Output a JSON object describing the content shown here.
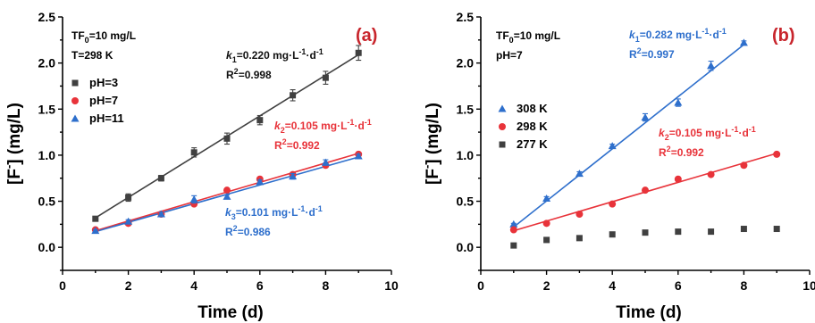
{
  "chart_data": [
    {
      "type": "scatter",
      "panel_label": "(a)",
      "xlabel": "Time (d)",
      "ylabel": "[F⁻] (mg/L)",
      "xlim": [
        0,
        10
      ],
      "ylim": [
        -0.25,
        2.5
      ],
      "xticks": [
        0,
        2,
        4,
        6,
        8,
        10
      ],
      "yticks": [
        0.0,
        0.5,
        1.0,
        1.5,
        2.0,
        2.5
      ],
      "xtick_labels": [
        "0",
        "2",
        "4",
        "6",
        "8",
        "10"
      ],
      "ytick_labels": [
        "0.0",
        "0.5",
        "1.0",
        "1.5",
        "2.0",
        "2.5"
      ],
      "conditions": [
        "TF0=10 mg/L",
        "T=298 K"
      ],
      "legend_position": "left",
      "series": [
        {
          "name": "pH=3",
          "color": "#404040",
          "marker": "square",
          "x": [
            1,
            2,
            3,
            4,
            5,
            6,
            7,
            8,
            9
          ],
          "y": [
            0.31,
            0.54,
            0.75,
            1.03,
            1.18,
            1.38,
            1.65,
            1.84,
            2.11
          ],
          "err": [
            0.02,
            0.04,
            0.03,
            0.05,
            0.06,
            0.05,
            0.06,
            0.07,
            0.08
          ],
          "fit": {
            "x": [
              1,
              9
            ],
            "y": [
              0.32,
              2.09
            ]
          },
          "annotation": {
            "k": "k1=0.220 mg·L-1·d-1",
            "r2": "R2=0.998"
          }
        },
        {
          "name": "pH=7",
          "color": "#e8333a",
          "marker": "circle",
          "x": [
            1,
            2,
            3,
            4,
            5,
            6,
            7,
            8,
            9
          ],
          "y": [
            0.19,
            0.26,
            0.36,
            0.47,
            0.62,
            0.74,
            0.79,
            0.89,
            1.01
          ],
          "err": [
            0,
            0,
            0,
            0,
            0,
            0,
            0,
            0,
            0
          ],
          "fit": {
            "x": [
              1,
              9
            ],
            "y": [
              0.18,
              1.02
            ]
          },
          "annotation": {
            "k": "k2=0.105 mg·L-1·d-1",
            "r2": "R2=0.992"
          }
        },
        {
          "name": "pH=11",
          "color": "#2e6fcc",
          "marker": "triangle",
          "x": [
            1,
            2,
            3,
            4,
            5,
            6,
            7,
            8,
            9
          ],
          "y": [
            0.18,
            0.28,
            0.36,
            0.52,
            0.55,
            0.71,
            0.77,
            0.92,
            0.99
          ],
          "err": [
            0.01,
            0.02,
            0.02,
            0.04,
            0.02,
            0.02,
            0.03,
            0.03,
            0.02
          ],
          "fit": {
            "x": [
              1,
              9
            ],
            "y": [
              0.17,
              0.98
            ]
          },
          "annotation": {
            "k": "k3=0.101 mg·L-1·d-1",
            "r2": "R2=0.986"
          }
        }
      ]
    },
    {
      "type": "scatter",
      "panel_label": "(b)",
      "xlabel": "Time (d)",
      "ylabel": "[F⁻] (mg/L)",
      "xlim": [
        0,
        10
      ],
      "ylim": [
        -0.25,
        2.5
      ],
      "xticks": [
        0,
        2,
        4,
        6,
        8,
        10
      ],
      "yticks": [
        0.0,
        0.5,
        1.0,
        1.5,
        2.0,
        2.5
      ],
      "xtick_labels": [
        "0",
        "2",
        "4",
        "6",
        "8",
        "10"
      ],
      "ytick_labels": [
        "0.0",
        "0.5",
        "1.0",
        "1.5",
        "2.0",
        "2.5"
      ],
      "conditions": [
        "TF0=10 mg/L",
        "pH=7"
      ],
      "legend_position": "left",
      "series": [
        {
          "name": "308 K",
          "color": "#2e6fcc",
          "marker": "triangle",
          "x": [
            1,
            2,
            3,
            4,
            5,
            6,
            7,
            8
          ],
          "y": [
            0.25,
            0.53,
            0.8,
            1.1,
            1.41,
            1.57,
            1.97,
            2.22
          ],
          "err": [
            0.01,
            0.02,
            0.02,
            0.02,
            0.04,
            0.04,
            0.05,
            0.02
          ],
          "fit": {
            "x": [
              1,
              8
            ],
            "y": [
              0.22,
              2.2
            ]
          },
          "annotation": {
            "k": "k1=0.282 mg·L-1·d-1",
            "r2": "R2=0.997"
          }
        },
        {
          "name": "298 K",
          "color": "#e8333a",
          "marker": "circle",
          "x": [
            1,
            2,
            3,
            4,
            5,
            6,
            7,
            8,
            9
          ],
          "y": [
            0.19,
            0.26,
            0.36,
            0.47,
            0.62,
            0.74,
            0.79,
            0.89,
            1.01
          ],
          "err": [
            0,
            0,
            0,
            0,
            0,
            0,
            0,
            0,
            0
          ],
          "fit": {
            "x": [
              1,
              9
            ],
            "y": [
              0.18,
              1.02
            ]
          },
          "annotation": {
            "k": "k2=0.105 mg·L-1·d-1",
            "r2": "R2=0.992"
          }
        },
        {
          "name": "277 K",
          "color": "#404040",
          "marker": "square",
          "x": [
            1,
            2,
            3,
            4,
            5,
            6,
            7,
            8,
            9
          ],
          "y": [
            0.02,
            0.08,
            0.1,
            0.14,
            0.16,
            0.17,
            0.17,
            0.2,
            0.2
          ],
          "err": [
            0,
            0,
            0,
            0,
            0,
            0,
            0,
            0,
            0
          ],
          "fit": null,
          "annotation": null
        }
      ]
    }
  ]
}
